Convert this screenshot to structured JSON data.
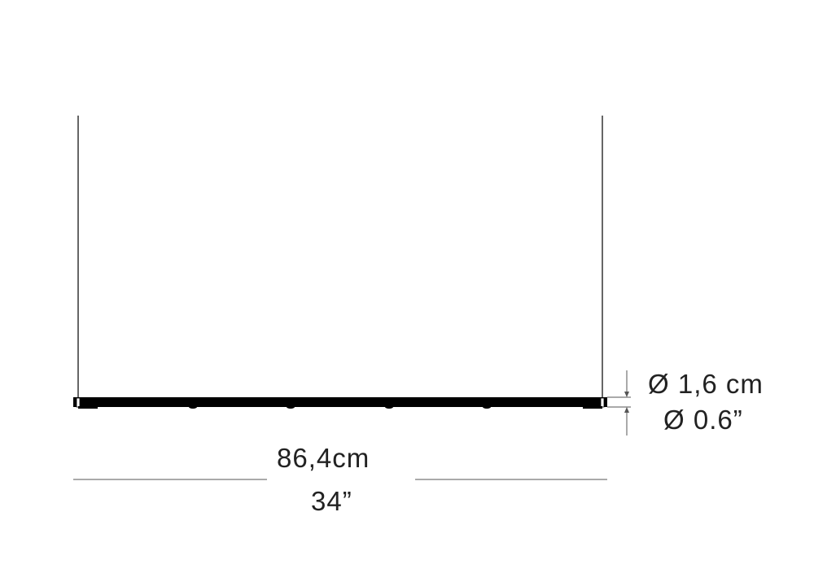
{
  "diagram": {
    "width_label_metric": "86,4cm",
    "width_label_imperial": "34”",
    "diameter_label_metric": "Ø 1,6 cm",
    "diameter_label_imperial": "Ø 0.6”",
    "colors": {
      "line": "#222222",
      "fixture": "#000000",
      "background": "#ffffff"
    }
  }
}
